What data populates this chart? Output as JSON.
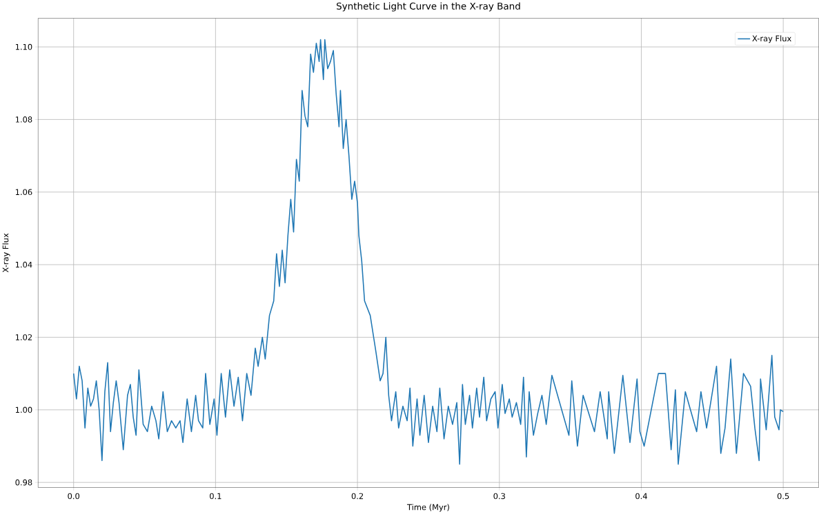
{
  "chart_data": {
    "type": "line",
    "title": "Synthetic Light Curve in the X-ray Band",
    "xlabel": "Time (Myr)",
    "ylabel": "X-ray Flux",
    "xlim": [
      -0.025,
      0.525
    ],
    "ylim": [
      0.9786,
      1.1079
    ],
    "xticks": [
      {
        "value": 0,
        "label": "0.0"
      },
      0.1,
      0.2,
      0.3,
      0.4,
      0.5
    ],
    "yticks": [
      {
        "value": 0.98,
        "label": "0.98"
      },
      {
        "value": 1.0,
        "label": "1.00"
      },
      {
        "value": 1.02,
        "label": "1.02"
      },
      {
        "value": 1.04,
        "label": "1.04"
      },
      {
        "value": 1.06,
        "label": "1.06"
      },
      {
        "value": 1.08,
        "label": "1.08"
      },
      {
        "value": 1.1,
        "label": "1.10"
      }
    ],
    "grid": true,
    "legend": "top right",
    "line_style": "solid",
    "marker": "none",
    "series": [
      {
        "name": "X-ray Flux",
        "color": "#1f77b4",
        "x": [
          0.0,
          0.002,
          0.004,
          0.006,
          0.008,
          0.01,
          0.012,
          0.014,
          0.016,
          0.018,
          0.02,
          0.022,
          0.024,
          0.026,
          0.028,
          0.03,
          0.032,
          0.035,
          0.038,
          0.04,
          0.042,
          0.044,
          0.046,
          0.049,
          0.052,
          0.055,
          0.058,
          0.06,
          0.063,
          0.066,
          0.069,
          0.072,
          0.075,
          0.077,
          0.08,
          0.083,
          0.086,
          0.088,
          0.091,
          0.093,
          0.096,
          0.099,
          0.101,
          0.104,
          0.107,
          0.11,
          0.113,
          0.116,
          0.119,
          0.122,
          0.125,
          0.128,
          0.13,
          0.133,
          0.135,
          0.138,
          0.141,
          0.143,
          0.145,
          0.147,
          0.149,
          0.151,
          0.153,
          0.155,
          0.157,
          0.159,
          0.161,
          0.163,
          0.165,
          0.167,
          0.169,
          0.171,
          0.173,
          0.174,
          0.176,
          0.177,
          0.179,
          0.181,
          0.183,
          0.185,
          0.187,
          0.188,
          0.19,
          0.192,
          0.194,
          0.196,
          0.198,
          0.2,
          0.201,
          0.203,
          0.205,
          0.207,
          0.209,
          0.211,
          0.213,
          0.216,
          0.218,
          0.22,
          0.222,
          0.224,
          0.227,
          0.229,
          0.232,
          0.235,
          0.237,
          0.239,
          0.242,
          0.244,
          0.247,
          0.25,
          0.253,
          0.256,
          0.258,
          0.261,
          0.264,
          0.267,
          0.27,
          0.272,
          0.274,
          0.276,
          0.279,
          0.281,
          0.284,
          0.286,
          0.289,
          0.291,
          0.294,
          0.297,
          0.299,
          0.302,
          0.304,
          0.307,
          0.309,
          0.312,
          0.315,
          0.317,
          0.319,
          0.321,
          0.324,
          0.327,
          0.33,
          0.333,
          0.337,
          0.349,
          0.351,
          0.355,
          0.359,
          0.367,
          0.371,
          0.376,
          0.377,
          0.381,
          0.387,
          0.392,
          0.397,
          0.399,
          0.402,
          0.412,
          0.417,
          0.421,
          0.424,
          0.426,
          0.431,
          0.439,
          0.442,
          0.446,
          0.453,
          0.456,
          0.459,
          0.463,
          0.467,
          0.472,
          0.477,
          0.48,
          0.483,
          0.484,
          0.488,
          0.492,
          0.494,
          0.497,
          0.498,
          0.5
        ],
        "values": [
          1.01,
          1.003,
          1.012,
          1.008,
          0.995,
          1.006,
          1.001,
          1.003,
          1.008,
          1.0,
          0.986,
          1.005,
          1.013,
          0.994,
          1.002,
          1.008,
          1.002,
          0.989,
          1.004,
          1.007,
          0.998,
          0.993,
          1.011,
          0.996,
          0.994,
          1.001,
          0.997,
          0.992,
          1.005,
          0.994,
          0.997,
          0.995,
          0.997,
          0.991,
          1.003,
          0.994,
          1.004,
          0.997,
          0.995,
          1.01,
          0.996,
          1.003,
          0.993,
          1.01,
          0.998,
          1.011,
          1.001,
          1.009,
          0.997,
          1.01,
          1.004,
          1.017,
          1.012,
          1.02,
          1.014,
          1.026,
          1.03,
          1.043,
          1.034,
          1.044,
          1.035,
          1.048,
          1.058,
          1.049,
          1.069,
          1.063,
          1.088,
          1.081,
          1.078,
          1.098,
          1.093,
          1.101,
          1.096,
          1.102,
          1.091,
          1.102,
          1.094,
          1.096,
          1.099,
          1.087,
          1.078,
          1.088,
          1.072,
          1.08,
          1.07,
          1.058,
          1.063,
          1.057,
          1.048,
          1.041,
          1.03,
          1.028,
          1.026,
          1.021,
          1.016,
          1.008,
          1.01,
          1.02,
          1.004,
          0.997,
          1.005,
          0.995,
          1.001,
          0.997,
          1.006,
          0.99,
          1.003,
          0.993,
          1.004,
          0.991,
          1.001,
          0.994,
          1.006,
          0.992,
          1.001,
          0.996,
          1.002,
          0.985,
          1.007,
          0.996,
          1.004,
          0.995,
          1.006,
          0.998,
          1.009,
          0.997,
          1.003,
          1.005,
          0.995,
          1.007,
          0.999,
          1.003,
          0.998,
          1.002,
          0.996,
          1.009,
          0.987,
          1.005,
          0.993,
          0.999,
          1.004,
          0.996,
          1.0095,
          0.993,
          1.008,
          0.99,
          1.004,
          0.994,
          1.005,
          0.992,
          1.005,
          0.988,
          1.0095,
          0.991,
          1.0085,
          0.994,
          0.99,
          1.01,
          1.01,
          0.989,
          1.0055,
          0.985,
          1.005,
          0.994,
          1.005,
          0.995,
          1.012,
          0.988,
          0.995,
          1.014,
          0.988,
          1.01,
          1.0065,
          0.995,
          0.986,
          1.0085,
          0.9945,
          1.015,
          0.998,
          0.9945,
          1.0,
          0.9995
        ]
      }
    ]
  }
}
